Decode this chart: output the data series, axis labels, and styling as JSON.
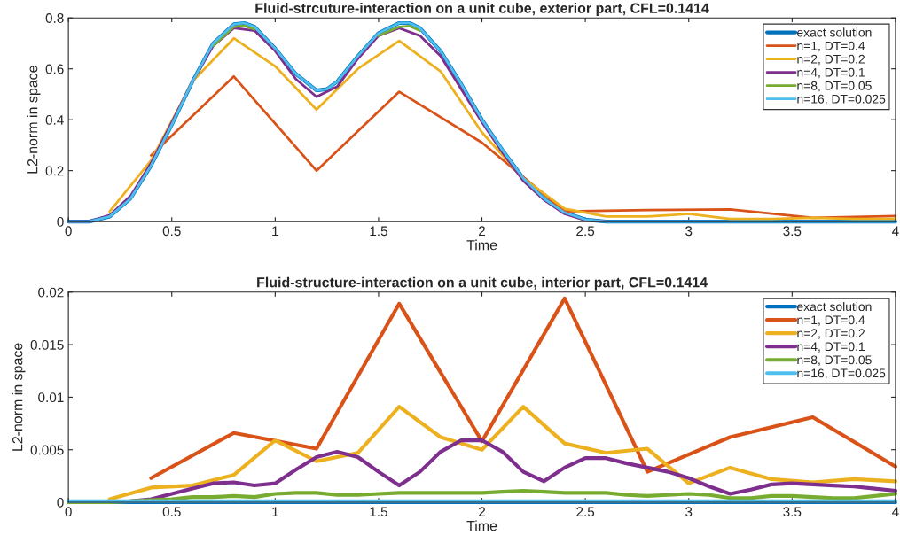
{
  "chart_data": [
    {
      "type": "line",
      "title": "Fluid-strcuture-interaction on a unit cube, exterior part, CFL=0.1414",
      "xlabel": "Time",
      "ylabel": "L2-norm in space",
      "xlim": [
        0,
        4
      ],
      "ylim": [
        0,
        0.8
      ],
      "xticks": [
        0,
        0.5,
        1,
        1.5,
        2,
        2.5,
        3,
        3.5,
        4
      ],
      "yticks": [
        0,
        0.2,
        0.4,
        0.6,
        0.8
      ],
      "legend": "top right",
      "grid": false,
      "series": [
        {
          "name": "exact solution",
          "color": "#0072bd",
          "x": [
            0,
            0.1,
            0.2,
            0.3,
            0.4,
            0.5,
            0.6,
            0.7,
            0.8,
            0.85,
            0.9,
            1.0,
            1.1,
            1.2,
            1.25,
            1.3,
            1.4,
            1.5,
            1.6,
            1.65,
            1.7,
            1.8,
            1.9,
            2.0,
            2.1,
            2.2,
            2.3,
            2.4,
            2.5,
            2.6,
            3.0,
            3.5,
            4.0
          ],
          "values": [
            0,
            0,
            0.02,
            0.09,
            0.22,
            0.38,
            0.55,
            0.7,
            0.775,
            0.78,
            0.765,
            0.68,
            0.58,
            0.515,
            0.52,
            0.55,
            0.65,
            0.74,
            0.78,
            0.78,
            0.76,
            0.67,
            0.54,
            0.4,
            0.28,
            0.17,
            0.09,
            0.035,
            0.008,
            0,
            0,
            0,
            0
          ]
        },
        {
          "name": "n=1, DT=0.4",
          "color": "#d95319",
          "x": [
            0.4,
            0.8,
            1.2,
            1.6,
            2.0,
            2.4,
            2.8,
            3.2,
            3.6,
            4.0
          ],
          "values": [
            0.26,
            0.57,
            0.2,
            0.51,
            0.31,
            0.04,
            0.045,
            0.048,
            0.015,
            0.022
          ]
        },
        {
          "name": "n=2, DT=0.2",
          "color": "#edb120",
          "x": [
            0.2,
            0.4,
            0.6,
            0.8,
            1.0,
            1.2,
            1.4,
            1.6,
            1.8,
            2.0,
            2.2,
            2.4,
            2.6,
            2.8,
            3.0,
            3.2,
            3.4,
            3.6,
            3.8,
            4.0
          ],
          "values": [
            0.04,
            0.24,
            0.55,
            0.72,
            0.61,
            0.44,
            0.6,
            0.71,
            0.59,
            0.35,
            0.17,
            0.05,
            0.02,
            0.02,
            0.03,
            0.01,
            0.01,
            0.015,
            0.01,
            0.01
          ]
        },
        {
          "name": "n=4, DT=0.1",
          "color": "#7e2f8e",
          "x": [
            0,
            0.1,
            0.2,
            0.3,
            0.4,
            0.5,
            0.6,
            0.7,
            0.8,
            0.9,
            1.0,
            1.1,
            1.2,
            1.3,
            1.4,
            1.5,
            1.6,
            1.7,
            1.8,
            1.9,
            2.0,
            2.1,
            2.2,
            2.3,
            2.4,
            2.5,
            2.6
          ],
          "values": [
            0,
            0,
            0.025,
            0.1,
            0.23,
            0.39,
            0.55,
            0.69,
            0.76,
            0.75,
            0.67,
            0.56,
            0.49,
            0.53,
            0.64,
            0.73,
            0.76,
            0.73,
            0.65,
            0.52,
            0.39,
            0.27,
            0.16,
            0.085,
            0.03,
            0.005,
            0.002
          ]
        },
        {
          "name": "n=8, DT=0.05",
          "color": "#77ac30",
          "x": [
            0.7,
            0.8,
            0.85,
            0.9,
            1.2,
            1.5,
            1.6,
            1.65,
            1.7
          ],
          "values": [
            0.69,
            0.765,
            0.77,
            0.755,
            null,
            0.73,
            0.765,
            0.768,
            0.75
          ]
        },
        {
          "name": "n=16, DT=0.025",
          "color": "#4dbeee",
          "x": [
            0,
            0.1,
            0.2,
            0.3,
            0.4,
            0.5,
            0.6,
            0.7,
            0.8,
            0.85,
            0.9,
            1.0,
            1.1,
            1.2,
            1.25,
            1.3,
            1.4,
            1.5,
            1.6,
            1.65,
            1.7,
            1.8,
            1.9,
            2.0,
            2.1,
            2.2,
            2.3,
            2.4,
            2.5,
            2.6,
            3.0,
            3.5,
            4.0
          ],
          "values": [
            0,
            0,
            0.02,
            0.09,
            0.22,
            0.38,
            0.55,
            0.7,
            0.775,
            0.78,
            0.765,
            0.68,
            0.58,
            0.515,
            0.52,
            0.55,
            0.65,
            0.74,
            0.78,
            0.78,
            0.76,
            0.67,
            0.54,
            0.4,
            0.28,
            0.17,
            0.09,
            0.035,
            0.008,
            0,
            0,
            0,
            0
          ]
        }
      ]
    },
    {
      "type": "line",
      "title": "Fluid-structure-interaction on a unit cube, interior part, CFL=0.1414",
      "xlabel": "Time",
      "ylabel": "L2-norm in space",
      "xlim": [
        0,
        4
      ],
      "ylim": [
        0,
        0.02
      ],
      "xticks": [
        0,
        0.5,
        1,
        1.5,
        2,
        2.5,
        3,
        3.5,
        4
      ],
      "yticks": [
        0,
        0.005,
        0.01,
        0.015,
        0.02
      ],
      "legend": "top right",
      "grid": false,
      "series": [
        {
          "name": "exact solution",
          "color": "#0072bd",
          "x": [
            0,
            1,
            2,
            3,
            4
          ],
          "values": [
            0,
            0,
            0,
            0,
            0
          ]
        },
        {
          "name": "n=1, DT=0.4",
          "color": "#d95319",
          "x": [
            0.4,
            0.8,
            1.2,
            1.6,
            2.0,
            2.4,
            2.8,
            3.2,
            3.6,
            4.0
          ],
          "values": [
            0.0023,
            0.0066,
            0.0051,
            0.0189,
            0.0058,
            0.0194,
            0.0029,
            0.0062,
            0.0081,
            0.0034
          ]
        },
        {
          "name": "n=2, DT=0.2",
          "color": "#edb120",
          "x": [
            0.2,
            0.4,
            0.6,
            0.8,
            1.0,
            1.2,
            1.4,
            1.6,
            1.8,
            2.0,
            2.2,
            2.4,
            2.6,
            2.8,
            3.0,
            3.2,
            3.4,
            3.6,
            3.8,
            4.0
          ],
          "values": [
            0.0003,
            0.0014,
            0.0016,
            0.0026,
            0.0059,
            0.0039,
            0.0047,
            0.0091,
            0.0062,
            0.005,
            0.0091,
            0.0056,
            0.0047,
            0.0051,
            0.0018,
            0.0033,
            0.0022,
            0.0019,
            0.0022,
            0.002
          ]
        },
        {
          "name": "n=4, DT=0.1",
          "color": "#7e2f8e",
          "x": [
            0.3,
            0.4,
            0.5,
            0.6,
            0.7,
            0.8,
            0.9,
            1.0,
            1.1,
            1.2,
            1.3,
            1.4,
            1.5,
            1.6,
            1.7,
            1.8,
            1.9,
            2.0,
            2.1,
            2.2,
            2.3,
            2.4,
            2.5,
            2.6,
            2.7,
            2.8,
            2.9,
            3.0,
            3.1,
            3.2,
            3.3,
            3.4,
            3.5,
            3.6,
            3.7,
            3.8,
            3.9,
            4.0
          ],
          "values": [
            0.0001,
            0.0003,
            0.0008,
            0.0013,
            0.0018,
            0.0019,
            0.0016,
            0.0018,
            0.0031,
            0.0043,
            0.0048,
            0.0043,
            0.0029,
            0.0016,
            0.0029,
            0.0048,
            0.0059,
            0.0059,
            0.0048,
            0.0029,
            0.002,
            0.0033,
            0.0042,
            0.0042,
            0.0037,
            0.0033,
            0.0029,
            0.0023,
            0.0015,
            0.0008,
            0.0012,
            0.0017,
            0.0018,
            0.0017,
            0.0016,
            0.0015,
            0.0013,
            0.0011
          ]
        },
        {
          "name": "n=8, DT=0.05",
          "color": "#77ac30",
          "x": [
            0,
            0.2,
            0.4,
            0.5,
            0.6,
            0.7,
            0.8,
            0.9,
            1.0,
            1.1,
            1.2,
            1.3,
            1.4,
            1.5,
            1.6,
            1.7,
            1.8,
            1.9,
            2.0,
            2.1,
            2.2,
            2.3,
            2.4,
            2.5,
            2.6,
            2.7,
            2.8,
            2.9,
            3.0,
            3.1,
            3.2,
            3.3,
            3.4,
            3.5,
            3.6,
            3.7,
            3.8,
            3.9,
            4.0
          ],
          "values": [
            0,
            0,
            0.0002,
            0.0003,
            0.0005,
            0.0005,
            0.0006,
            0.0005,
            0.0008,
            0.0009,
            0.0009,
            0.0007,
            0.0007,
            0.0008,
            0.0009,
            0.0009,
            0.0009,
            0.0009,
            0.0009,
            0.001,
            0.0011,
            0.001,
            0.0009,
            0.0009,
            0.0009,
            0.0007,
            0.0006,
            0.0007,
            0.0008,
            0.0007,
            0.0004,
            0.0004,
            0.0006,
            0.0006,
            0.0005,
            0.0004,
            0.0004,
            0.0006,
            0.0008
          ]
        },
        {
          "name": "n=16, DT=0.025",
          "color": "#4dbeee",
          "x": [
            0,
            1,
            2,
            3,
            4
          ],
          "values": [
            0.0001,
            0.0001,
            0.0001,
            0.0001,
            0.0001
          ]
        }
      ]
    }
  ]
}
